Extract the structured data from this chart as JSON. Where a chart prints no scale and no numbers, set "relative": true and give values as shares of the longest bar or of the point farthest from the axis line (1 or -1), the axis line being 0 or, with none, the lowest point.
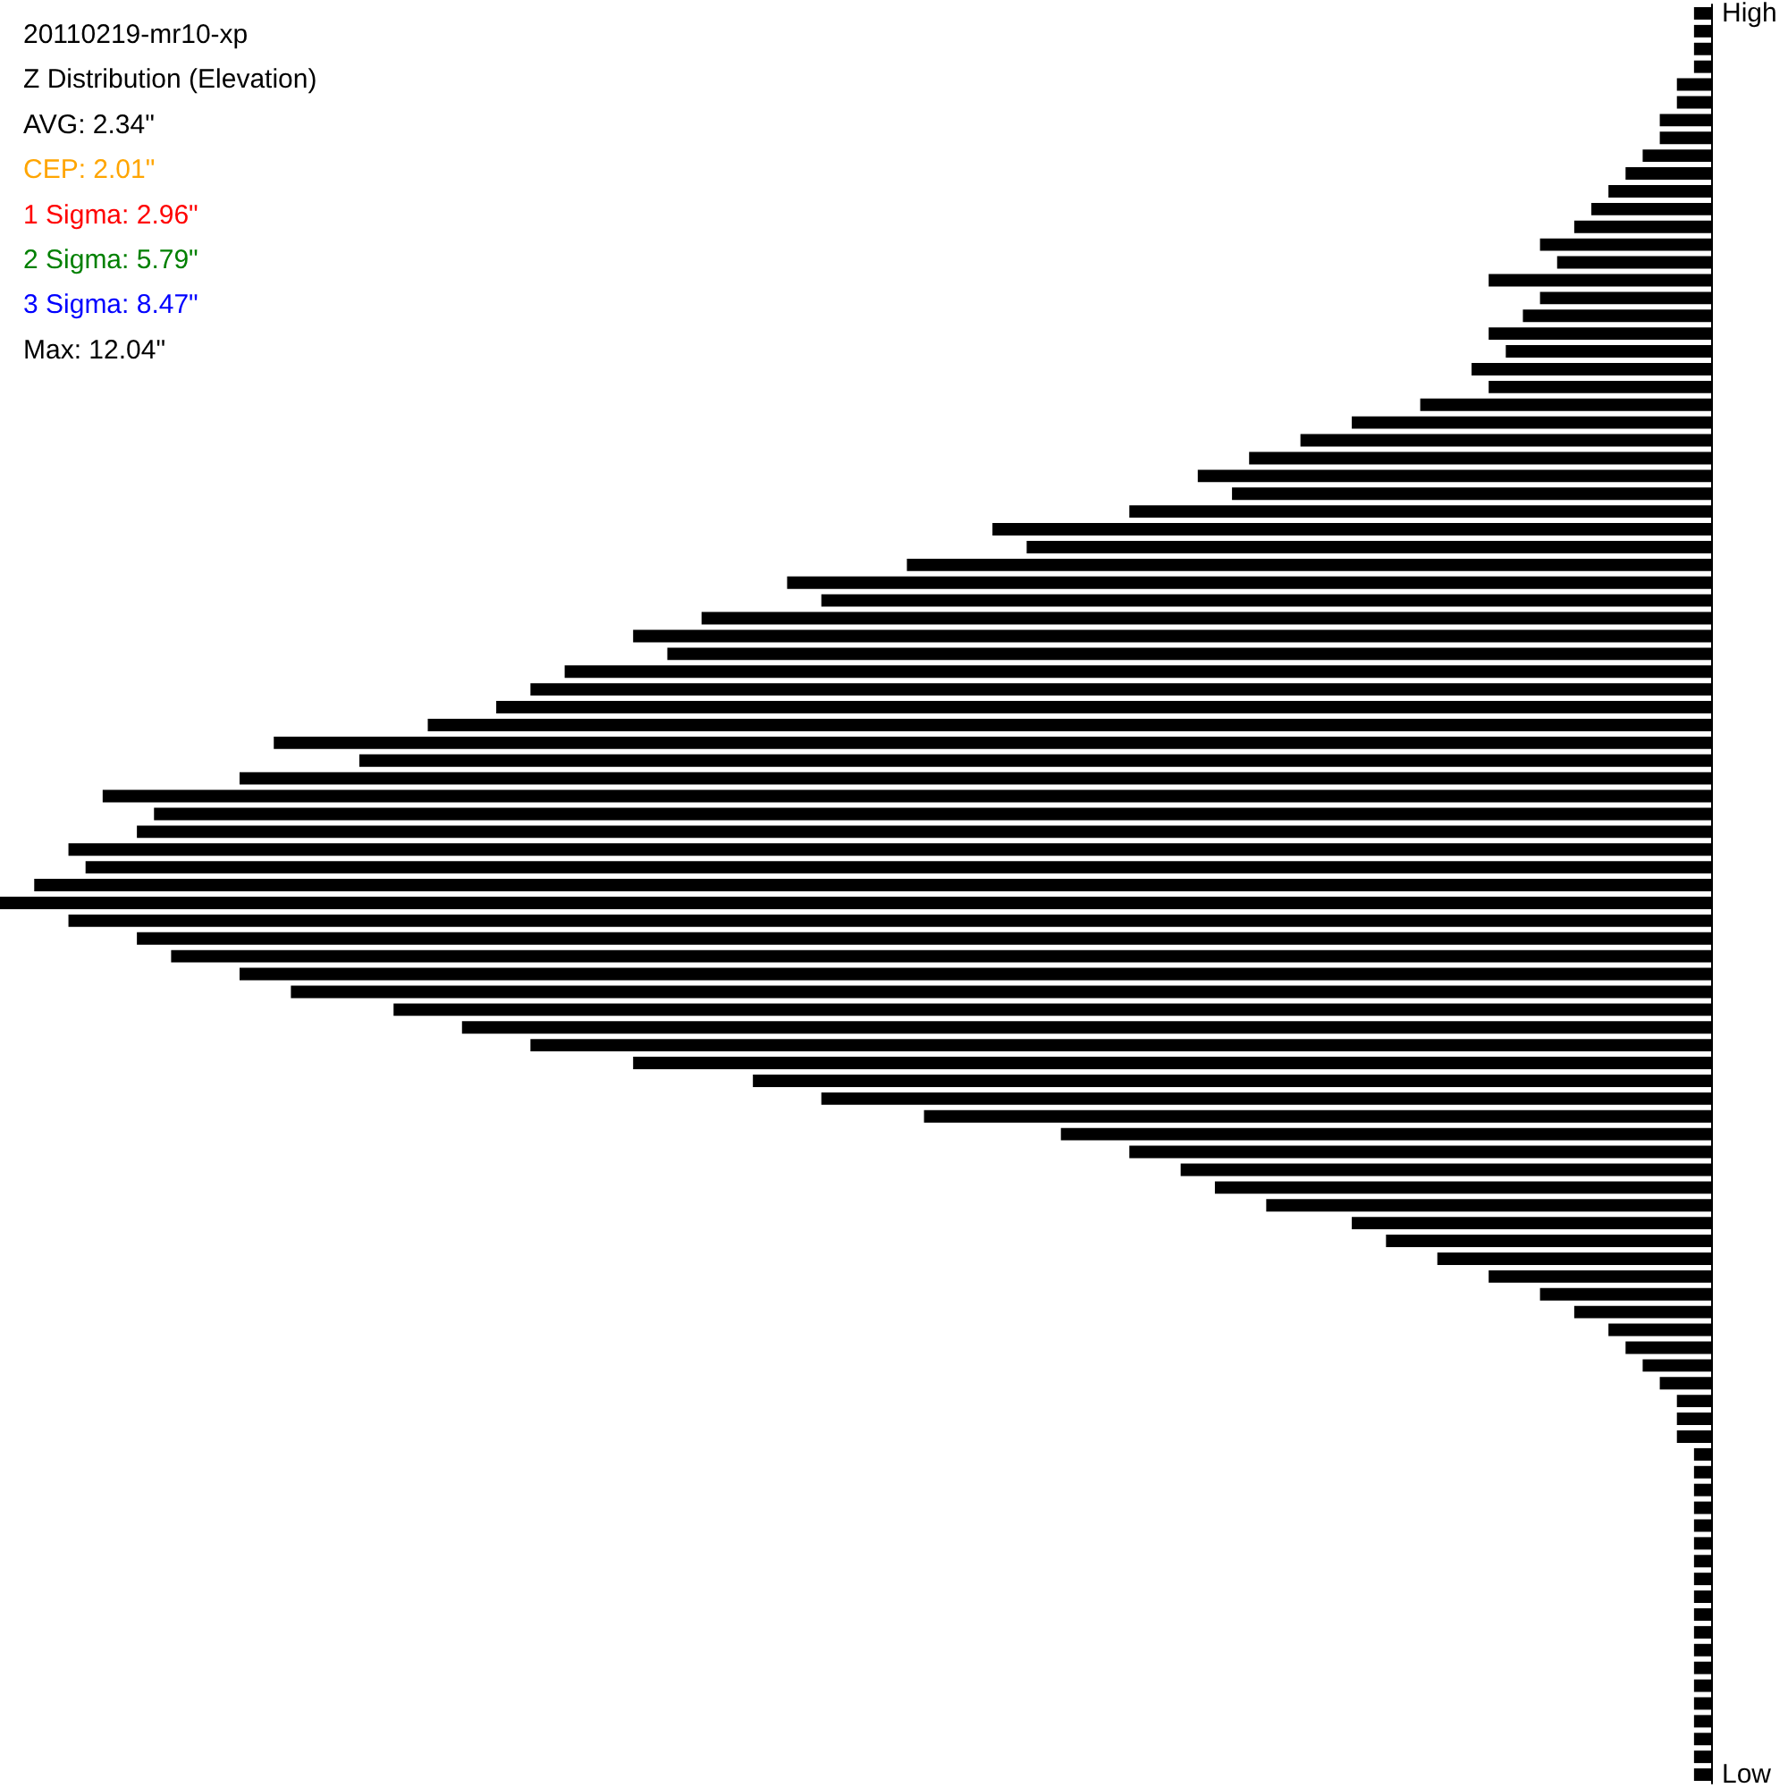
{
  "chart_data": {
    "type": "bar",
    "orientation": "horizontal",
    "relative": true,
    "title": "20110219-mr10-xp",
    "subtitle": "Z Distribution (Elevation)",
    "annotations": [
      "AVG: 2.34\"",
      "CEP: 2.01\"",
      "1 Sigma: 2.96\"",
      "2 Sigma: 5.79\"",
      "3 Sigma: 8.47\"",
      "Max: 12.04\""
    ],
    "categories": [
      "High",
      null,
      null,
      null,
      null,
      null,
      null,
      null,
      null,
      null,
      null,
      null,
      null,
      null,
      null,
      null,
      null,
      null,
      null,
      null,
      null,
      null,
      null,
      null,
      null,
      null,
      null,
      null,
      null,
      null,
      null,
      null,
      null,
      null,
      null,
      null,
      null,
      null,
      null,
      null,
      null,
      null,
      null,
      null,
      null,
      null,
      null,
      null,
      null,
      null,
      null,
      null,
      null,
      null,
      null,
      null,
      null,
      null,
      null,
      null,
      null,
      null,
      null,
      null,
      null,
      null,
      null,
      null,
      null,
      null,
      null,
      null,
      null,
      null,
      null,
      null,
      null,
      null,
      null,
      null,
      null,
      null,
      null,
      null,
      null,
      null,
      null,
      null,
      null,
      null,
      null,
      null,
      null,
      null,
      null,
      null,
      null,
      null,
      null,
      "Low"
    ],
    "values": [
      0.01,
      0.01,
      0.01,
      0.01,
      0.02,
      0.02,
      0.03,
      0.03,
      0.04,
      0.05,
      0.06,
      0.07,
      0.08,
      0.1,
      0.09,
      0.13,
      0.1,
      0.11,
      0.13,
      0.12,
      0.14,
      0.13,
      0.17,
      0.21,
      0.24,
      0.27,
      0.3,
      0.28,
      0.34,
      0.42,
      0.4,
      0.47,
      0.54,
      0.52,
      0.59,
      0.63,
      0.61,
      0.67,
      0.69,
      0.71,
      0.75,
      0.84,
      0.79,
      0.86,
      0.94,
      0.91,
      0.92,
      0.96,
      0.95,
      0.98,
      1,
      0.96,
      0.92,
      0.9,
      0.86,
      0.83,
      0.77,
      0.73,
      0.69,
      0.63,
      0.56,
      0.52,
      0.46,
      0.38,
      0.34,
      0.31,
      0.29,
      0.26,
      0.21,
      0.19,
      0.16,
      0.13,
      0.1,
      0.08,
      0.06,
      0.05,
      0.04,
      0.03,
      0.02,
      0.02,
      0.02,
      0.01,
      0.01,
      0.01,
      0.01,
      0.01,
      0.01,
      0.01,
      0.01,
      0.01,
      0.01,
      0.01,
      0.01,
      0.01,
      0.01,
      0.01,
      0.01,
      0.01,
      0.01,
      0.01
    ],
    "color": "#000000"
  }
}
